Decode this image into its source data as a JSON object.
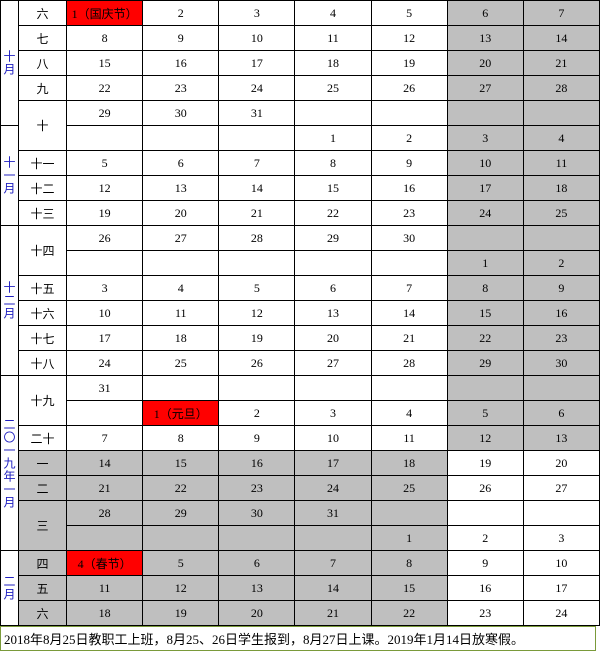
{
  "months": {
    "m10": "十月",
    "m11": "十一月",
    "m12": "十二月",
    "m2019_1": "二〇一九年一月",
    "m2": "二月"
  },
  "weeks": {
    "w6": "六",
    "w7": "七",
    "w8": "八",
    "w9": "九",
    "w10": "十",
    "w11": "十一",
    "w12": "十二",
    "w13": "十三",
    "w14": "十四",
    "w15": "十五",
    "w16": "十六",
    "w17": "十七",
    "w18": "十八",
    "w19": "十九",
    "w20": "二十",
    "e1": "一",
    "e2": "二",
    "e3": "三",
    "e4": "四",
    "e5": "五",
    "e6": "六"
  },
  "holidays": {
    "national": "1（国庆节）",
    "newyear": "1（元旦）",
    "spring": "4（春节）"
  },
  "d": {
    "n1": "1",
    "n2": "2",
    "n3": "3",
    "n4": "4",
    "n5": "5",
    "n6": "6",
    "n7": "7",
    "n8": "8",
    "n9": "9",
    "n10": "10",
    "n11": "11",
    "n12": "12",
    "n13": "13",
    "n14": "14",
    "n15": "15",
    "n16": "16",
    "n17": "17",
    "n18": "18",
    "n19": "19",
    "n20": "20",
    "n21": "21",
    "n22": "22",
    "n23": "23",
    "n24": "24",
    "n25": "25",
    "n26": "26",
    "n27": "27",
    "n28": "28",
    "n29": "29",
    "n30": "30",
    "n31": "31"
  },
  "footer": "2018年8月25日教职工上班，8月25、26日学生报到，8月27日上课。2019年1月14日放寒假。",
  "colors": {
    "weekend_bg": "#bfbfbf",
    "holiday_bg": "#ff0000",
    "month_text": "#2020c0",
    "border": "#000000",
    "footer_border": "#7a9a3a"
  }
}
